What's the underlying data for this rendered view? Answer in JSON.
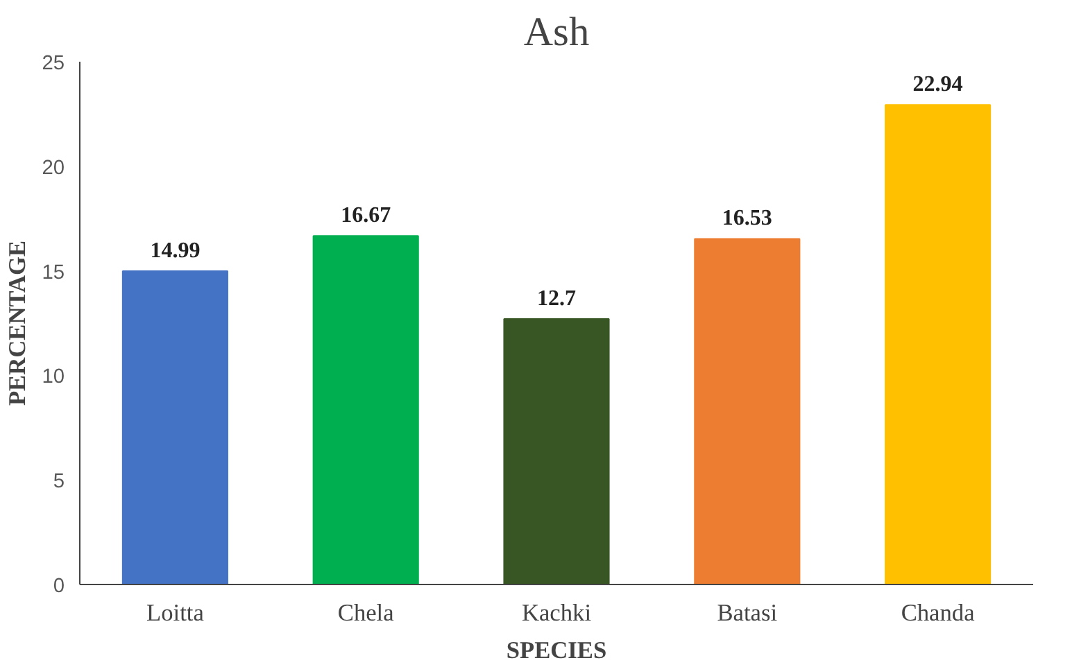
{
  "chart_data": {
    "type": "bar",
    "title": "Ash",
    "xlabel": "SPECIES",
    "ylabel": "PERCENTAGE",
    "categories": [
      "Loitta",
      "Chela",
      "Kachki",
      "Batasi",
      "Chanda"
    ],
    "values": [
      14.99,
      16.67,
      12.7,
      16.53,
      22.94
    ],
    "colors": [
      "#4472c4",
      "#00b050",
      "#375623",
      "#ed7d31",
      "#ffc000"
    ],
    "ylim": [
      0,
      25
    ],
    "yticks": [
      0,
      5,
      10,
      15,
      20,
      25
    ],
    "grid": false,
    "data_labels": true
  }
}
